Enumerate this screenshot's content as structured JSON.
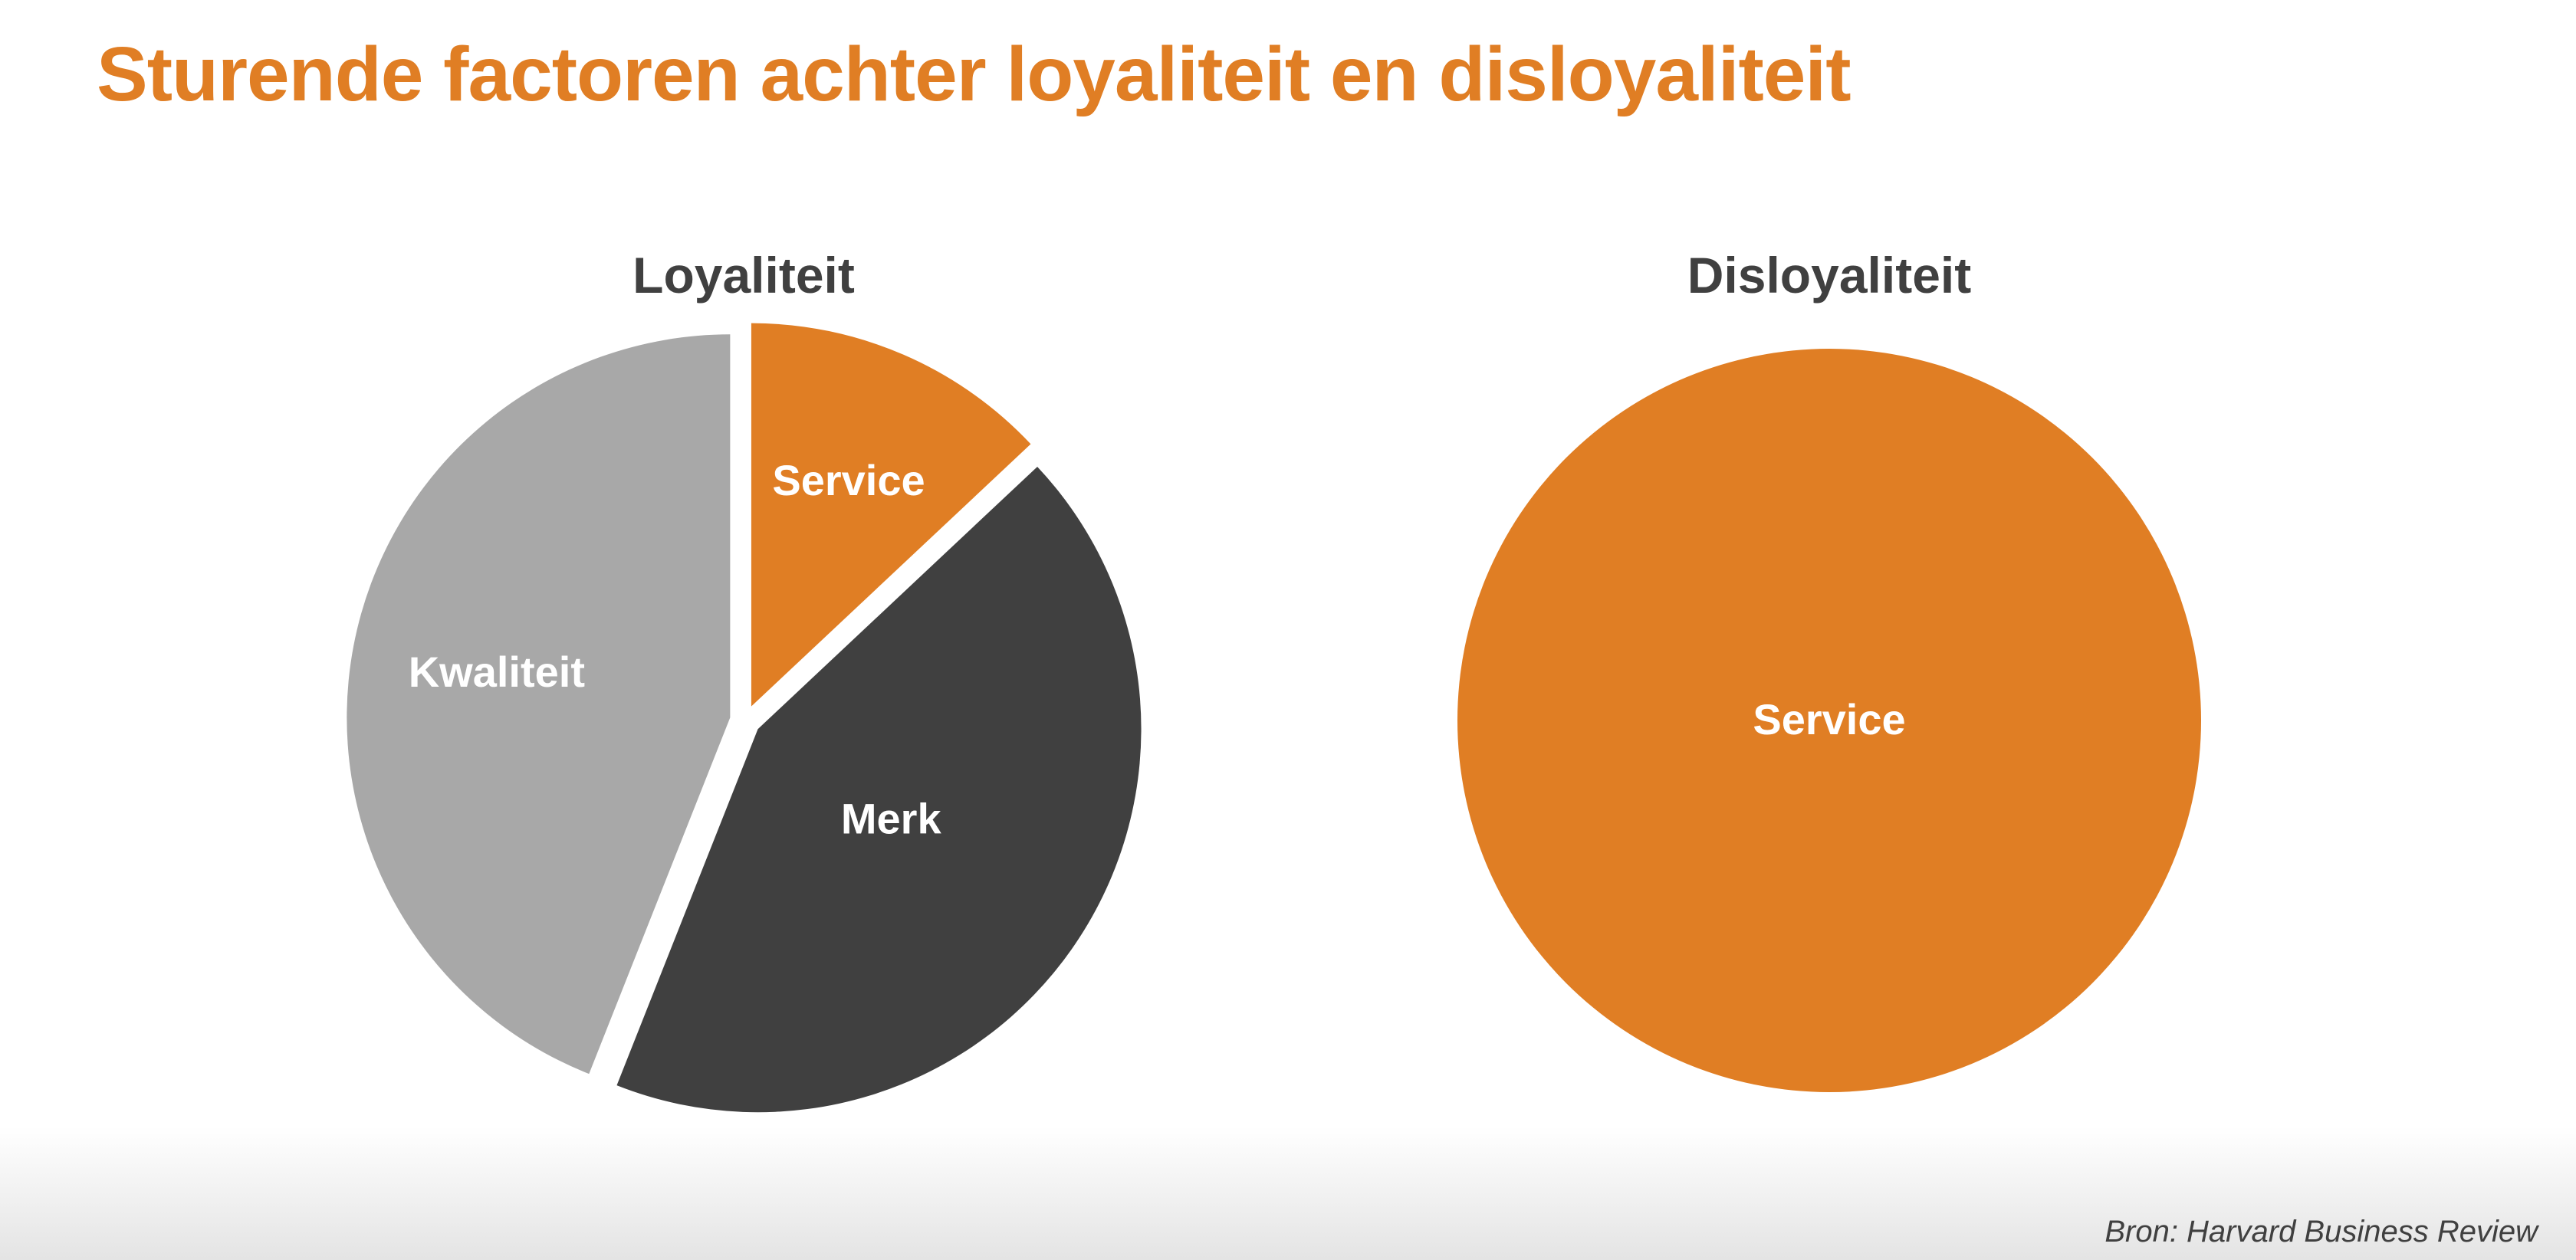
{
  "title": "Sturende factoren achter loyaliteit en disloyaliteit",
  "source": "Bron: Harvard Business Review",
  "colors": {
    "title": "#E07E24",
    "chart_title": "#404040",
    "service": "#E07E24",
    "merk": "#404040",
    "kwaliteit": "#A8A8A8",
    "label": "#FFFFFF"
  },
  "chart_data": [
    {
      "type": "pie",
      "title": "Loyaliteit",
      "exploded": true,
      "slices": [
        {
          "label": "Service",
          "value": 13,
          "color": "#E07E24"
        },
        {
          "label": "Merk",
          "value": 43,
          "color": "#404040"
        },
        {
          "label": "Kwaliteit",
          "value": 44,
          "color": "#A8A8A8"
        }
      ]
    },
    {
      "type": "pie",
      "title": "Disloyaliteit",
      "exploded": false,
      "slices": [
        {
          "label": "Service",
          "value": 100,
          "color": "#E07E24"
        }
      ]
    }
  ]
}
